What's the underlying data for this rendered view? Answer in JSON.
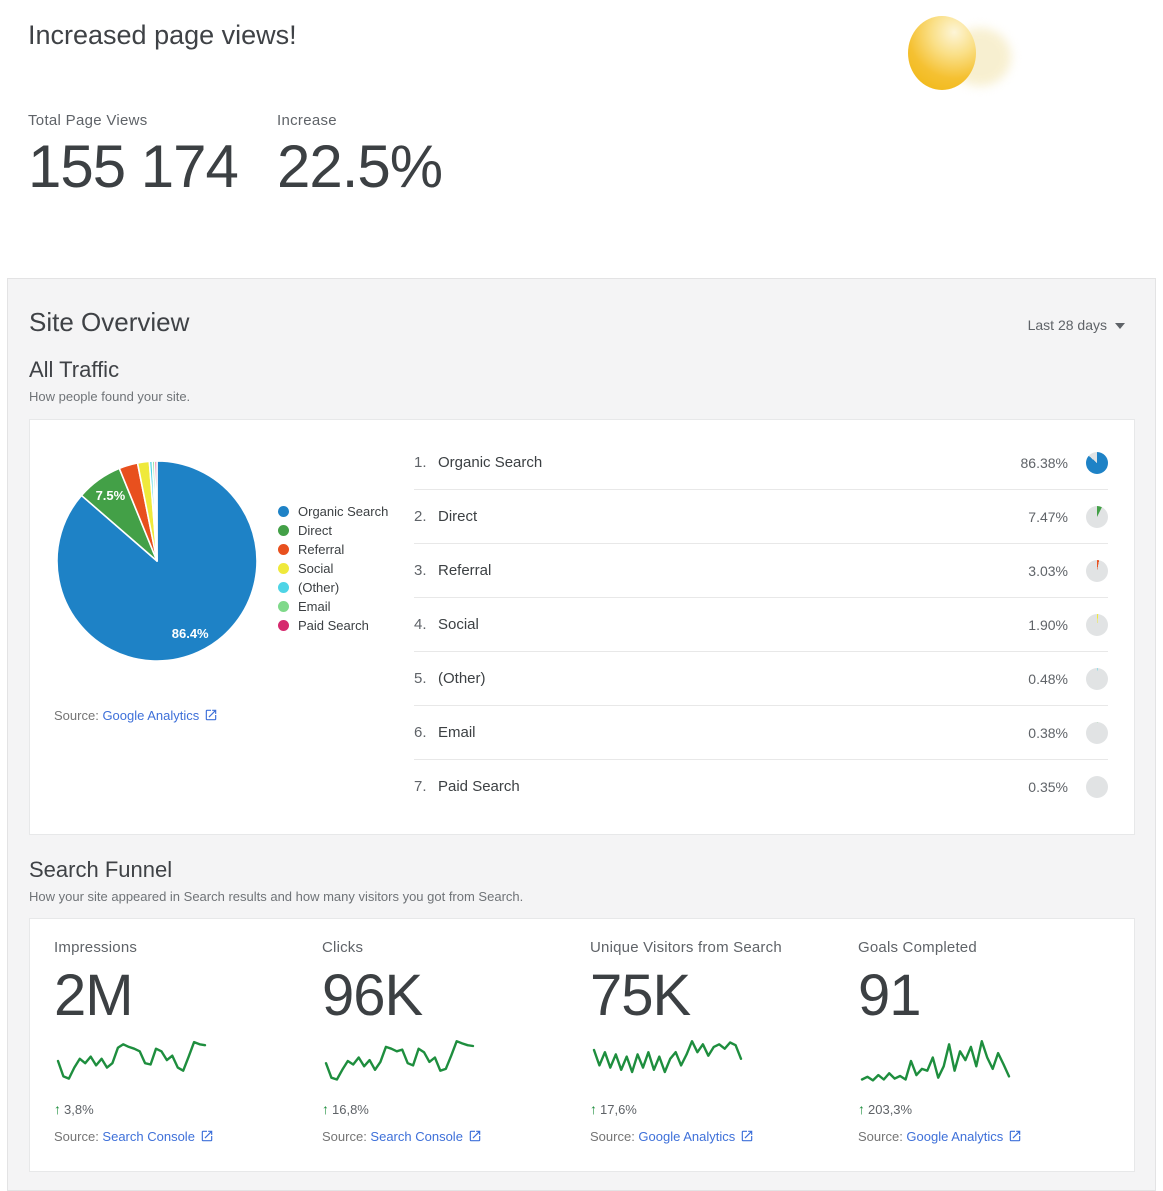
{
  "header": {
    "title": "Increased page views!",
    "total_label": "Total Page Views",
    "total_value": "155 174",
    "increase_label": "Increase",
    "increase_value": "22.5%"
  },
  "site_overview": {
    "title": "Site Overview",
    "range_label": "Last 28 days"
  },
  "all_traffic": {
    "title": "All Traffic",
    "subtitle": "How people found your site.",
    "source_prefix": "Source:",
    "source_link": "Google Analytics"
  },
  "search_funnel": {
    "title": "Search Funnel",
    "subtitle": "How your site appeared in Search results and how many visitors you got from Search.",
    "source_prefix": "Source:",
    "up_arrow": "↑"
  },
  "colors": {
    "link_blue": "#3e70d9",
    "spark_green": "#1e8e3e",
    "panel_gray": "#f4f4f5",
    "minipie_remainder": "#e1e3e4"
  },
  "chart_data": [
    {
      "id": "all-traffic-pie",
      "type": "pie",
      "title": "All Traffic",
      "categories": [
        "Organic Search",
        "Direct",
        "Referral",
        "Social",
        "(Other)",
        "Email",
        "Paid Search"
      ],
      "values": [
        86.38,
        7.47,
        3.03,
        1.9,
        0.48,
        0.38,
        0.35
      ],
      "display": [
        "86.38%",
        "7.47%",
        "3.03%",
        "1.90%",
        "0.48%",
        "0.38%",
        "0.35%"
      ],
      "colors": [
        "#1e82c6",
        "#43a047",
        "#e8501e",
        "#efe93b",
        "#4ed4e6",
        "#7fd98a",
        "#d62a6e"
      ],
      "inner_labels": [
        {
          "slice": 0,
          "text": "86.4%",
          "rf": 0.8
        },
        {
          "slice": 1,
          "text": "7.5%",
          "rf": 0.8
        }
      ],
      "legend_position": "right"
    },
    {
      "id": "impressions",
      "type": "line",
      "title": "Impressions",
      "value_label": "2M",
      "change": "3,8%",
      "source": "Search Console",
      "values": [
        50,
        15,
        10,
        35,
        55,
        45,
        60,
        40,
        55,
        35,
        45,
        80,
        88,
        82,
        78,
        72,
        45,
        42,
        78,
        72,
        52,
        62,
        35,
        28,
        60,
        93,
        88,
        86
      ]
    },
    {
      "id": "clicks",
      "type": "line",
      "title": "Clicks",
      "value_label": "96K",
      "change": "16,8%",
      "source": "Search Console",
      "values": [
        45,
        12,
        8,
        30,
        50,
        42,
        58,
        38,
        52,
        30,
        48,
        82,
        78,
        72,
        76,
        45,
        40,
        78,
        70,
        48,
        58,
        28,
        32,
        62,
        95,
        90,
        86,
        84
      ]
    },
    {
      "id": "unique-visitors-from-search",
      "type": "line",
      "title": "Unique Visitors from Search",
      "value_label": "75K",
      "change": "17,6%",
      "source": "Google Analytics",
      "values": [
        75,
        40,
        70,
        35,
        65,
        30,
        60,
        25,
        65,
        35,
        70,
        30,
        60,
        25,
        55,
        70,
        40,
        65,
        95,
        70,
        88,
        62,
        82,
        88,
        78,
        92,
        86,
        55
      ]
    },
    {
      "id": "goals-completed",
      "type": "line",
      "title": "Goals Completed",
      "value_label": "91",
      "change": "203,3%",
      "source": "Google Analytics",
      "values": [
        8,
        14,
        6,
        18,
        8,
        22,
        10,
        16,
        8,
        50,
        18,
        32,
        28,
        58,
        12,
        38,
        88,
        28,
        72,
        52,
        82,
        38,
        95,
        58,
        32,
        68,
        42,
        15
      ]
    }
  ]
}
